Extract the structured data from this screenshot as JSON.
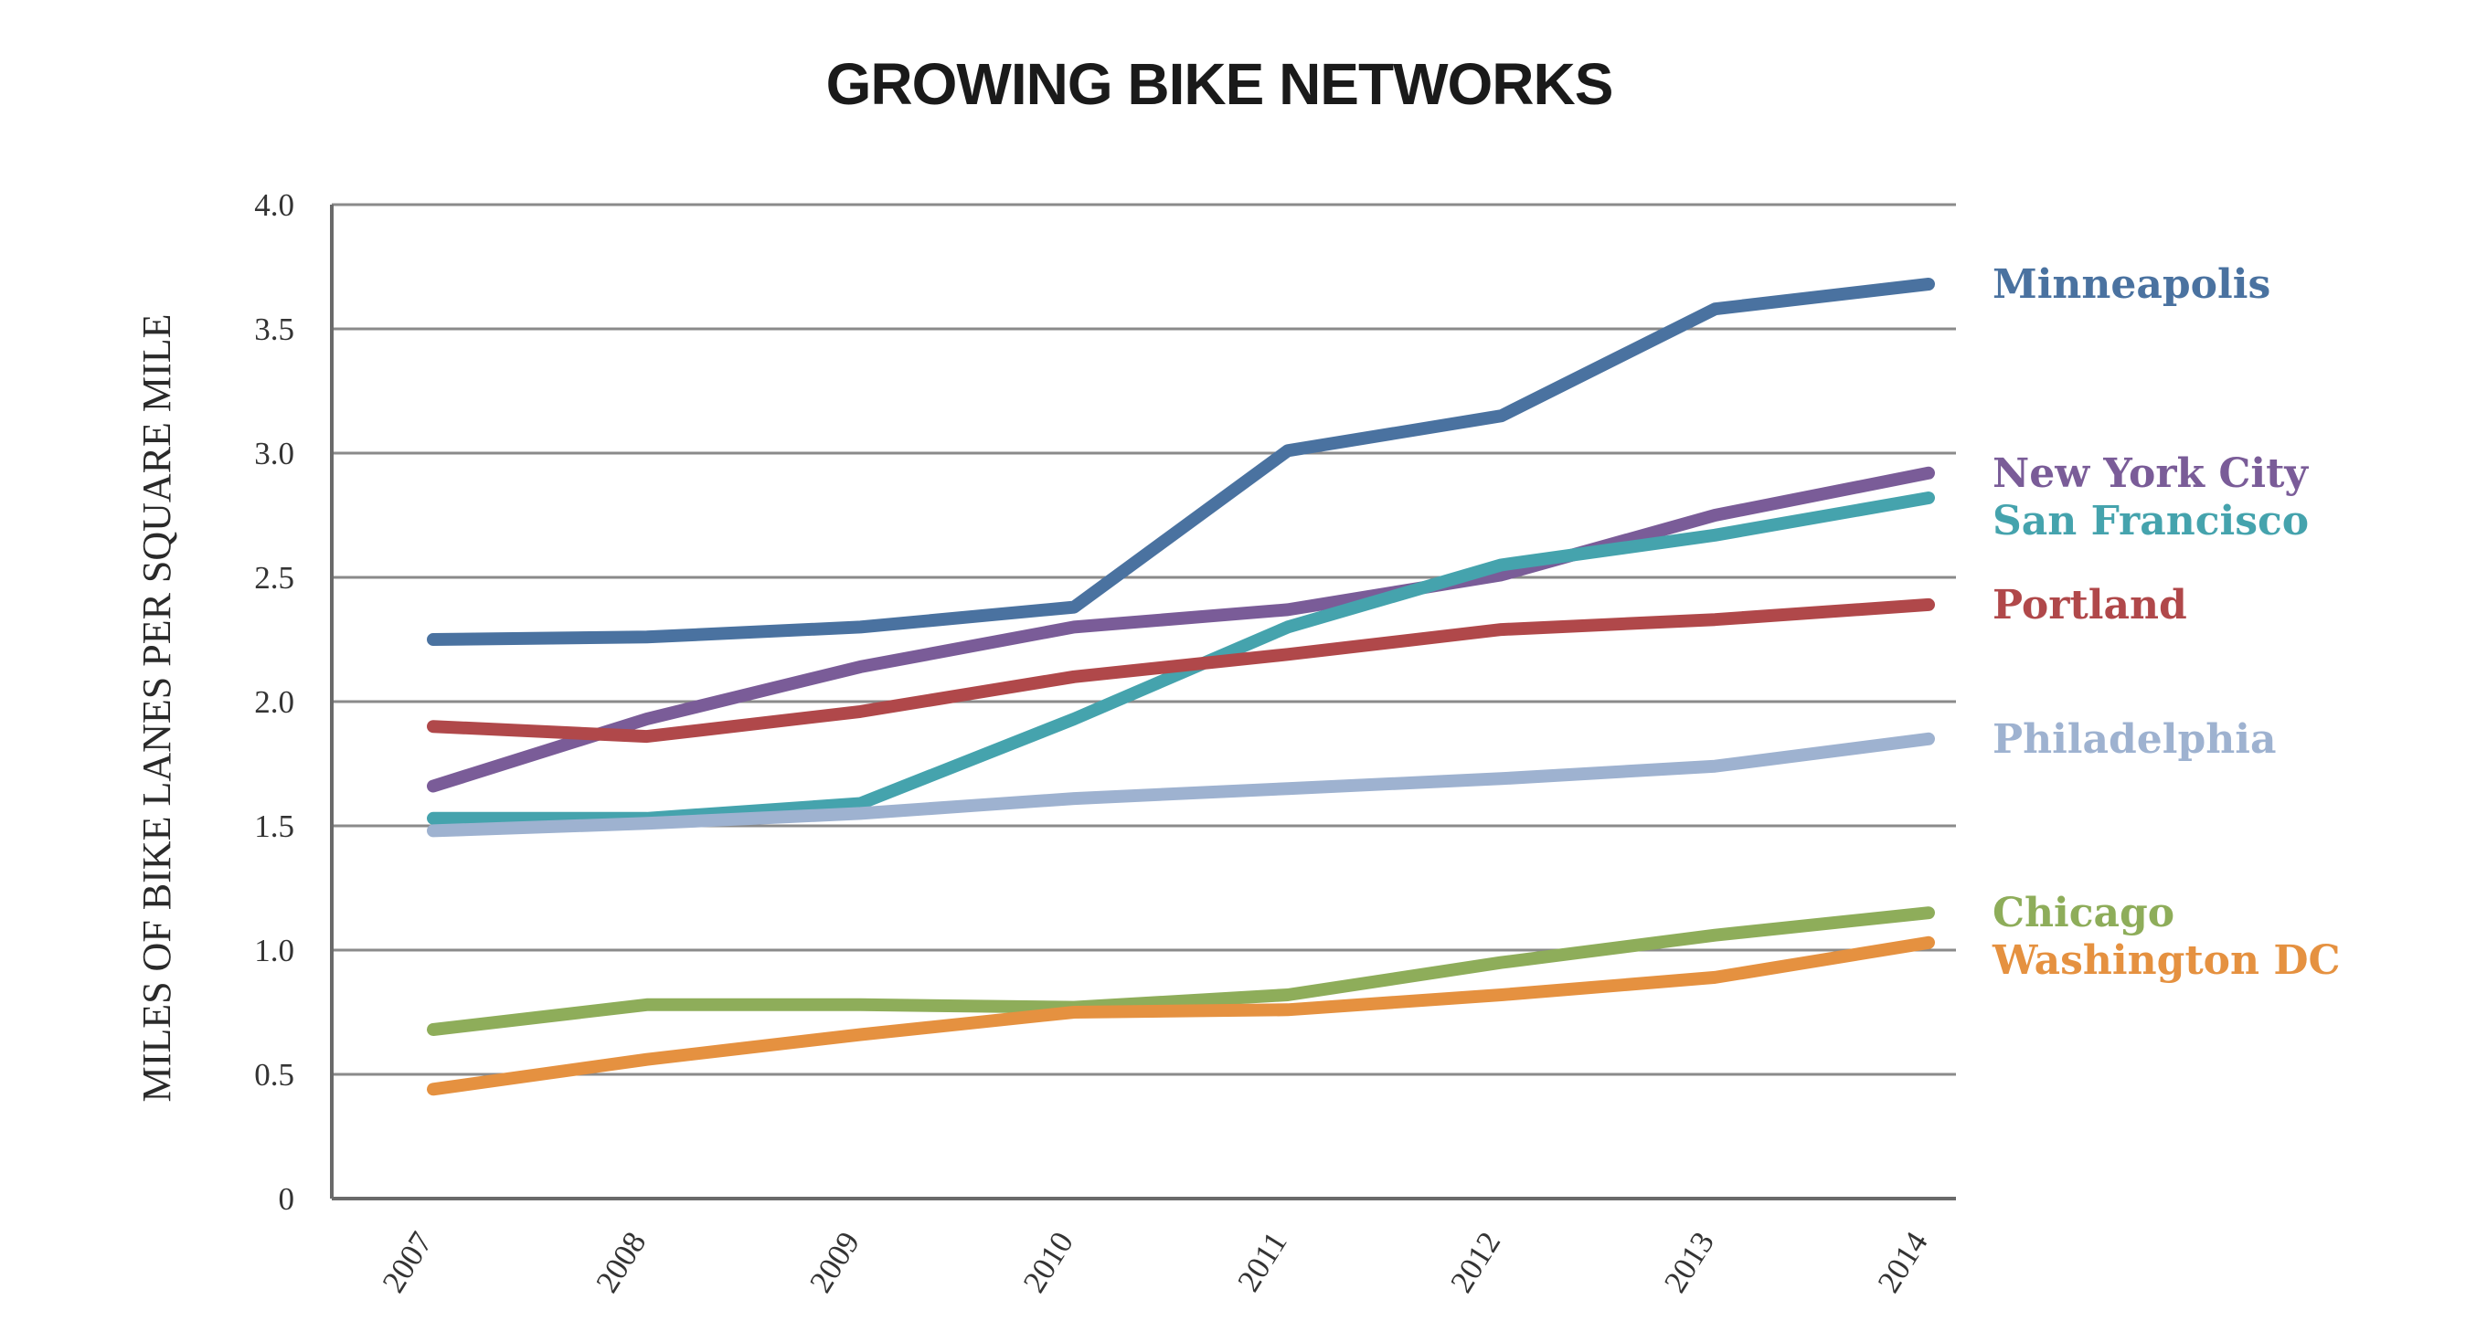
{
  "chart_data": {
    "type": "line",
    "title": "GROWING BIKE NETWORKS",
    "xlabel": "",
    "ylabel": "MILES OF BIKE LANES PER SQUARE MILE",
    "x": [
      "2007",
      "2008",
      "2009",
      "2010",
      "2011",
      "2012",
      "2013",
      "2014"
    ],
    "ylim": [
      0,
      4.0
    ],
    "yticks": [
      "0",
      "0.5",
      "1.0",
      "1.5",
      "2.0",
      "2.5",
      "3.0",
      "3.5",
      "4.0"
    ],
    "grid": true,
    "legend_placement": "right (direct labels)",
    "series": [
      {
        "name": "Minneapolis",
        "color": "#4a72a0",
        "values": [
          2.25,
          2.26,
          2.3,
          2.38,
          3.01,
          3.15,
          3.58,
          3.68
        ]
      },
      {
        "name": "New York City",
        "color": "#7a5c98",
        "values": [
          1.66,
          1.93,
          2.14,
          2.3,
          2.37,
          2.51,
          2.75,
          2.92
        ]
      },
      {
        "name": "San Francisco",
        "color": "#45a3ad",
        "values": [
          1.53,
          1.53,
          1.59,
          1.93,
          2.3,
          2.55,
          2.67,
          2.82
        ]
      },
      {
        "name": "Portland",
        "color": "#b0484a",
        "values": [
          1.9,
          1.86,
          1.96,
          2.1,
          2.19,
          2.29,
          2.33,
          2.39
        ]
      },
      {
        "name": "Philadelphia",
        "color": "#9eb2d0",
        "values": [
          1.48,
          1.51,
          1.55,
          1.61,
          1.65,
          1.69,
          1.74,
          1.85
        ]
      },
      {
        "name": "Chicago",
        "color": "#8ead5a",
        "values": [
          0.68,
          0.78,
          0.78,
          0.77,
          0.82,
          0.95,
          1.06,
          1.15
        ]
      },
      {
        "name": "Washington DC",
        "color": "#e59140",
        "values": [
          0.44,
          0.56,
          0.66,
          0.75,
          0.76,
          0.82,
          0.89,
          1.03
        ]
      }
    ]
  }
}
